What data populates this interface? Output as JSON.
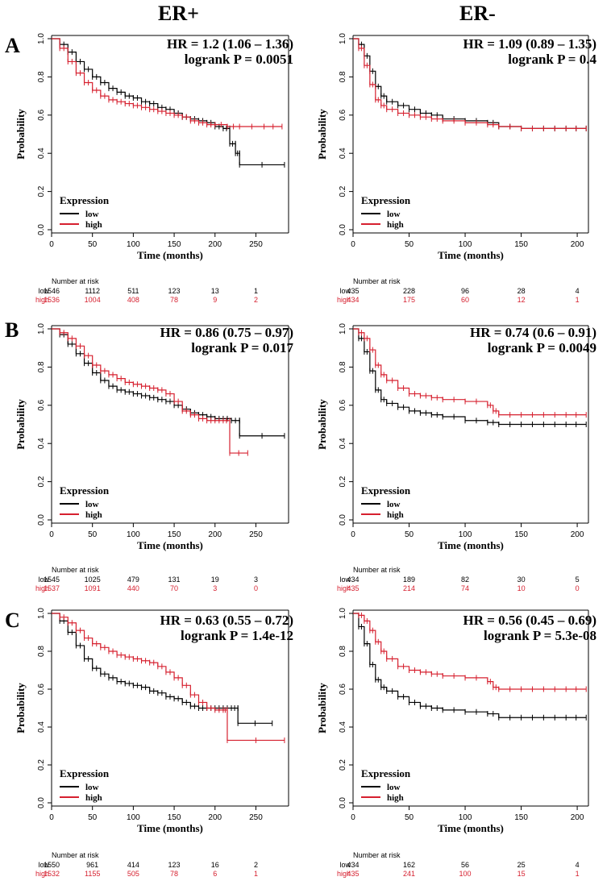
{
  "columns": [
    "ER+",
    "ER-"
  ],
  "row_labels": [
    "A",
    "B",
    "C"
  ],
  "colors": {
    "low": "#000000",
    "high": "#d6202f"
  },
  "risk_header": "Number at risk",
  "chart_data": [
    {
      "type": "line",
      "row": "A",
      "col": "ER+",
      "title": "",
      "xlabel": "Time (months)",
      "ylabel": "Probability",
      "xlim": [
        0,
        290
      ],
      "ylim": [
        0,
        1
      ],
      "xticks": [
        0,
        50,
        100,
        150,
        200,
        250
      ],
      "yticks": [
        0.0,
        0.2,
        0.4,
        0.6,
        0.8,
        1.0
      ],
      "hr_text": "HR = 1.2 (1.06 – 1.36)",
      "p_text": "logrank P = 0.0051",
      "legend": {
        "title": "Expression",
        "entries": [
          "low",
          "high"
        ]
      },
      "series": [
        {
          "name": "low",
          "x": [
            0,
            10,
            20,
            30,
            40,
            50,
            60,
            70,
            80,
            90,
            100,
            110,
            120,
            130,
            140,
            150,
            160,
            170,
            180,
            190,
            200,
            210,
            218,
            218,
            225,
            225,
            230,
            230,
            285
          ],
          "y": [
            1.0,
            0.97,
            0.93,
            0.88,
            0.84,
            0.8,
            0.77,
            0.74,
            0.72,
            0.7,
            0.69,
            0.67,
            0.66,
            0.64,
            0.63,
            0.61,
            0.59,
            0.58,
            0.57,
            0.56,
            0.54,
            0.53,
            0.53,
            0.45,
            0.45,
            0.4,
            0.4,
            0.34,
            0.34
          ]
        },
        {
          "name": "high",
          "x": [
            0,
            10,
            20,
            30,
            40,
            50,
            60,
            70,
            80,
            90,
            100,
            110,
            120,
            130,
            140,
            150,
            160,
            170,
            180,
            190,
            200,
            215,
            230,
            260,
            282
          ],
          "y": [
            1.0,
            0.95,
            0.88,
            0.82,
            0.77,
            0.73,
            0.7,
            0.68,
            0.67,
            0.66,
            0.65,
            0.64,
            0.63,
            0.62,
            0.61,
            0.6,
            0.59,
            0.57,
            0.56,
            0.55,
            0.55,
            0.54,
            0.54,
            0.54,
            0.54
          ]
        }
      ],
      "risk": {
        "times": [
          0,
          50,
          100,
          150,
          200,
          250
        ],
        "rows": [
          {
            "label": "low",
            "values": [
              1546,
              1112,
              511,
              123,
              13,
              1
            ]
          },
          {
            "label": "high",
            "values": [
              1536,
              1004,
              408,
              78,
              9,
              2
            ]
          }
        ]
      }
    },
    {
      "type": "line",
      "row": "A",
      "col": "ER-",
      "title": "",
      "xlabel": "Time (months)",
      "ylabel": "Probability",
      "xlim": [
        0,
        210
      ],
      "ylim": [
        0,
        1
      ],
      "xticks": [
        0,
        50,
        100,
        150,
        200
      ],
      "yticks": [
        0.0,
        0.2,
        0.4,
        0.6,
        0.8,
        1.0
      ],
      "hr_text": "HR = 1.09 (0.89 – 1.35)",
      "p_text": "logrank P = 0.4",
      "legend": {
        "title": "Expression",
        "entries": [
          "low",
          "high"
        ]
      },
      "series": [
        {
          "name": "low",
          "x": [
            0,
            5,
            10,
            15,
            20,
            25,
            30,
            40,
            50,
            60,
            70,
            80,
            100,
            120,
            130,
            150,
            170,
            190,
            208
          ],
          "y": [
            1.0,
            0.97,
            0.91,
            0.83,
            0.75,
            0.7,
            0.67,
            0.65,
            0.63,
            0.61,
            0.6,
            0.58,
            0.57,
            0.56,
            0.54,
            0.53,
            0.53,
            0.53,
            0.53
          ]
        },
        {
          "name": "high",
          "x": [
            0,
            5,
            10,
            15,
            20,
            25,
            30,
            40,
            50,
            60,
            70,
            80,
            100,
            120,
            130,
            150,
            170,
            190,
            208
          ],
          "y": [
            1.0,
            0.95,
            0.86,
            0.76,
            0.68,
            0.65,
            0.63,
            0.61,
            0.6,
            0.59,
            0.58,
            0.57,
            0.56,
            0.55,
            0.54,
            0.53,
            0.53,
            0.53,
            0.53
          ]
        }
      ],
      "risk": {
        "times": [
          0,
          50,
          100,
          150,
          200
        ],
        "rows": [
          {
            "label": "low",
            "values": [
              435,
              228,
              96,
              28,
              4
            ]
          },
          {
            "label": "high",
            "values": [
              434,
              175,
              60,
              12,
              1
            ]
          }
        ]
      }
    },
    {
      "type": "line",
      "row": "B",
      "col": "ER+",
      "title": "",
      "xlabel": "Time (months)",
      "ylabel": "Probability",
      "xlim": [
        0,
        290
      ],
      "ylim": [
        0,
        1
      ],
      "xticks": [
        0,
        50,
        100,
        150,
        200,
        250
      ],
      "yticks": [
        0.0,
        0.2,
        0.4,
        0.6,
        0.8,
        1.0
      ],
      "hr_text": "HR = 0.86 (0.75 – 0.97)",
      "p_text": "logrank P = 0.017",
      "legend": {
        "title": "Expression",
        "entries": [
          "low",
          "high"
        ]
      },
      "series": [
        {
          "name": "low",
          "x": [
            0,
            10,
            20,
            30,
            40,
            50,
            60,
            70,
            80,
            90,
            100,
            110,
            120,
            130,
            140,
            150,
            160,
            170,
            180,
            190,
            200,
            210,
            220,
            230,
            230,
            285
          ],
          "y": [
            1.0,
            0.97,
            0.92,
            0.87,
            0.82,
            0.77,
            0.73,
            0.7,
            0.68,
            0.67,
            0.66,
            0.65,
            0.64,
            0.63,
            0.62,
            0.6,
            0.58,
            0.56,
            0.55,
            0.54,
            0.53,
            0.53,
            0.52,
            0.52,
            0.44,
            0.44
          ]
        },
        {
          "name": "high",
          "x": [
            0,
            10,
            20,
            30,
            40,
            50,
            60,
            70,
            80,
            90,
            100,
            110,
            120,
            130,
            140,
            150,
            160,
            170,
            180,
            190,
            200,
            210,
            218,
            218,
            240
          ],
          "y": [
            1.0,
            0.98,
            0.95,
            0.91,
            0.86,
            0.81,
            0.78,
            0.76,
            0.74,
            0.72,
            0.71,
            0.7,
            0.69,
            0.68,
            0.66,
            0.62,
            0.57,
            0.55,
            0.53,
            0.52,
            0.52,
            0.52,
            0.52,
            0.35,
            0.35
          ]
        }
      ],
      "risk": {
        "times": [
          0,
          50,
          100,
          150,
          200,
          250
        ],
        "rows": [
          {
            "label": "low",
            "values": [
              1545,
              1025,
              479,
              131,
              19,
              3
            ]
          },
          {
            "label": "high",
            "values": [
              1537,
              1091,
              440,
              70,
              3,
              0
            ]
          }
        ]
      }
    },
    {
      "type": "line",
      "row": "B",
      "col": "ER-",
      "title": "",
      "xlabel": "Time (months)",
      "ylabel": "Probability",
      "xlim": [
        0,
        210
      ],
      "ylim": [
        0,
        1
      ],
      "xticks": [
        0,
        50,
        100,
        150,
        200
      ],
      "yticks": [
        0.0,
        0.2,
        0.4,
        0.6,
        0.8,
        1.0
      ],
      "hr_text": "HR = 0.74 (0.6 – 0.91)",
      "p_text": "logrank P = 0.0049",
      "legend": {
        "title": "Expression",
        "entries": [
          "low",
          "high"
        ]
      },
      "series": [
        {
          "name": "low",
          "x": [
            0,
            5,
            10,
            15,
            20,
            25,
            30,
            40,
            50,
            60,
            70,
            80,
            100,
            120,
            130,
            150,
            170,
            190,
            208
          ],
          "y": [
            1.0,
            0.95,
            0.88,
            0.78,
            0.68,
            0.63,
            0.61,
            0.59,
            0.57,
            0.56,
            0.55,
            0.54,
            0.52,
            0.51,
            0.5,
            0.5,
            0.5,
            0.5,
            0.5
          ]
        },
        {
          "name": "high",
          "x": [
            0,
            5,
            10,
            15,
            20,
            25,
            30,
            40,
            50,
            60,
            70,
            80,
            100,
            120,
            125,
            130,
            150,
            170,
            190,
            208
          ],
          "y": [
            1.0,
            0.98,
            0.95,
            0.89,
            0.81,
            0.76,
            0.73,
            0.69,
            0.66,
            0.65,
            0.64,
            0.63,
            0.62,
            0.6,
            0.57,
            0.55,
            0.55,
            0.55,
            0.55,
            0.55
          ]
        }
      ],
      "risk": {
        "times": [
          0,
          50,
          100,
          150,
          200
        ],
        "rows": [
          {
            "label": "low",
            "values": [
              434,
              189,
              82,
              30,
              5
            ]
          },
          {
            "label": "high",
            "values": [
              435,
              214,
              74,
              10,
              0
            ]
          }
        ]
      }
    },
    {
      "type": "line",
      "row": "C",
      "col": "ER+",
      "title": "",
      "xlabel": "Time (months)",
      "ylabel": "Probability",
      "xlim": [
        0,
        290
      ],
      "ylim": [
        0,
        1
      ],
      "xticks": [
        0,
        50,
        100,
        150,
        200,
        250
      ],
      "yticks": [
        0.0,
        0.2,
        0.4,
        0.6,
        0.8,
        1.0
      ],
      "hr_text": "HR = 0.63 (0.55 – 0.72)",
      "p_text": "logrank P = 1.4e-12",
      "legend": {
        "title": "Expression",
        "entries": [
          "low",
          "high"
        ]
      },
      "series": [
        {
          "name": "low",
          "x": [
            0,
            10,
            20,
            30,
            40,
            50,
            60,
            70,
            80,
            90,
            100,
            110,
            120,
            130,
            140,
            150,
            160,
            170,
            180,
            190,
            200,
            210,
            220,
            228,
            228,
            270
          ],
          "y": [
            1.0,
            0.96,
            0.9,
            0.83,
            0.76,
            0.71,
            0.68,
            0.66,
            0.64,
            0.63,
            0.62,
            0.61,
            0.59,
            0.58,
            0.56,
            0.55,
            0.53,
            0.51,
            0.5,
            0.5,
            0.5,
            0.5,
            0.5,
            0.5,
            0.42,
            0.42
          ]
        },
        {
          "name": "high",
          "x": [
            0,
            10,
            20,
            30,
            40,
            50,
            60,
            70,
            80,
            90,
            100,
            110,
            120,
            130,
            140,
            150,
            160,
            170,
            180,
            190,
            200,
            210,
            215,
            215,
            285
          ],
          "y": [
            1.0,
            0.98,
            0.95,
            0.91,
            0.87,
            0.84,
            0.82,
            0.8,
            0.78,
            0.77,
            0.76,
            0.75,
            0.74,
            0.72,
            0.69,
            0.66,
            0.62,
            0.57,
            0.53,
            0.5,
            0.49,
            0.49,
            0.49,
            0.33,
            0.33
          ]
        }
      ],
      "risk": {
        "times": [
          0,
          50,
          100,
          150,
          200,
          250
        ],
        "rows": [
          {
            "label": "low",
            "values": [
              1550,
              961,
              414,
              123,
              16,
              2
            ]
          },
          {
            "label": "high",
            "values": [
              1532,
              1155,
              505,
              78,
              6,
              1
            ]
          }
        ]
      }
    },
    {
      "type": "line",
      "row": "C",
      "col": "ER-",
      "title": "",
      "xlabel": "Time (months)",
      "ylabel": "Probability",
      "xlim": [
        0,
        210
      ],
      "ylim": [
        0,
        1
      ],
      "xticks": [
        0,
        50,
        100,
        150,
        200
      ],
      "yticks": [
        0.0,
        0.2,
        0.4,
        0.6,
        0.8,
        1.0
      ],
      "hr_text": "HR = 0.56 (0.45 – 0.69)",
      "p_text": "logrank P = 5.3e-08",
      "legend": {
        "title": "Expression",
        "entries": [
          "low",
          "high"
        ]
      },
      "series": [
        {
          "name": "low",
          "x": [
            0,
            5,
            10,
            15,
            20,
            25,
            30,
            40,
            50,
            60,
            70,
            80,
            100,
            120,
            130,
            150,
            170,
            190,
            208
          ],
          "y": [
            1.0,
            0.93,
            0.84,
            0.73,
            0.65,
            0.61,
            0.59,
            0.56,
            0.53,
            0.51,
            0.5,
            0.49,
            0.48,
            0.47,
            0.45,
            0.45,
            0.45,
            0.45,
            0.45
          ]
        },
        {
          "name": "high",
          "x": [
            0,
            5,
            10,
            15,
            20,
            25,
            30,
            40,
            50,
            60,
            70,
            80,
            100,
            120,
            125,
            130,
            150,
            170,
            190,
            208
          ],
          "y": [
            1.0,
            0.99,
            0.96,
            0.91,
            0.85,
            0.8,
            0.76,
            0.72,
            0.7,
            0.69,
            0.68,
            0.67,
            0.66,
            0.64,
            0.61,
            0.6,
            0.6,
            0.6,
            0.6,
            0.6
          ]
        }
      ],
      "risk": {
        "times": [
          0,
          50,
          100,
          150,
          200
        ],
        "rows": [
          {
            "label": "low",
            "values": [
              434,
              162,
              56,
              25,
              4
            ]
          },
          {
            "label": "high",
            "values": [
              435,
              241,
              100,
              15,
              1
            ]
          }
        ]
      }
    }
  ]
}
